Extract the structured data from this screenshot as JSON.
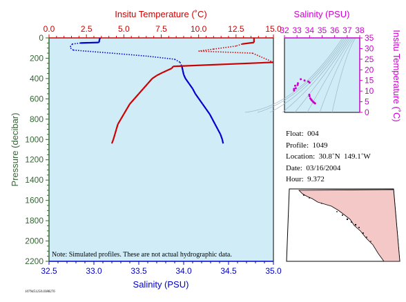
{
  "chart_data": [
    {
      "type": "line",
      "title": "",
      "top_axis": {
        "label": "Insitu Temperature (˚C)",
        "ticks": [
          "0.0",
          "2.5",
          "5.0",
          "7.5",
          "10.0",
          "12.5",
          "15.0"
        ],
        "range": [
          0.0,
          15.0
        ],
        "color": "#cc0000"
      },
      "bottom_axis": {
        "label": "Salinity (PSU)",
        "ticks": [
          "32.5",
          "33.0",
          "33.5",
          "34.0",
          "34.5",
          "35.0"
        ],
        "range": [
          32.5,
          35.0
        ],
        "color": "#0000cc"
      },
      "left_axis": {
        "label": "Pressure (decibar)",
        "ticks": [
          "0",
          "200",
          "400",
          "600",
          "800",
          "1000",
          "1200",
          "1400",
          "1600",
          "1800",
          "2000",
          "2200"
        ],
        "range": [
          0,
          2200
        ],
        "inverted": true,
        "color": "#336633"
      },
      "background": "#d0ecf7",
      "note": "Note: Simulated profiles.  These are not actual hydrographic data.",
      "series": [
        {
          "quantity": "salinity",
          "color": "#0000cc",
          "points": [
            [
              33.07,
              0
            ],
            [
              33.06,
              20
            ],
            [
              33.06,
              40
            ],
            [
              33.05,
              45
            ],
            [
              32.85,
              50
            ],
            [
              32.76,
              60
            ],
            [
              32.74,
              80
            ],
            [
              32.74,
              100
            ],
            [
              32.77,
              120
            ],
            [
              33.2,
              150
            ],
            [
              33.6,
              180
            ],
            [
              33.9,
              210
            ],
            [
              33.96,
              240
            ],
            [
              33.98,
              280
            ],
            [
              33.99,
              320
            ],
            [
              34.0,
              360
            ],
            [
              34.02,
              400
            ],
            [
              34.06,
              450
            ],
            [
              34.1,
              500
            ],
            [
              34.13,
              550
            ],
            [
              34.17,
              600
            ],
            [
              34.21,
              650
            ],
            [
              34.25,
              700
            ],
            [
              34.29,
              750
            ],
            [
              34.32,
              800
            ],
            [
              34.35,
              850
            ],
            [
              34.38,
              900
            ],
            [
              34.41,
              950
            ],
            [
              34.43,
              1000
            ],
            [
              34.44,
              1040
            ]
          ],
          "dotted_depth_range": [
            50,
            280
          ]
        },
        {
          "quantity": "temperature",
          "color": "#cc0000",
          "points": [
            [
              13.7,
              0
            ],
            [
              13.7,
              20
            ],
            [
              13.7,
              45
            ],
            [
              12.9,
              60
            ],
            [
              12.5,
              80
            ],
            [
              11.0,
              110
            ],
            [
              10.0,
              130
            ],
            [
              13.6,
              150
            ],
            [
              15.0,
              240
            ],
            [
              8.3,
              280
            ],
            [
              8.2,
              300
            ],
            [
              7.9,
              320
            ],
            [
              7.6,
              340
            ],
            [
              7.2,
              370
            ],
            [
              6.9,
              400
            ],
            [
              6.6,
              450
            ],
            [
              6.3,
              500
            ],
            [
              6.0,
              550
            ],
            [
              5.7,
              600
            ],
            [
              5.4,
              650
            ],
            [
              5.2,
              700
            ],
            [
              5.0,
              750
            ],
            [
              4.8,
              800
            ],
            [
              4.6,
              850
            ],
            [
              4.5,
              900
            ],
            [
              4.4,
              950
            ],
            [
              4.3,
              1000
            ],
            [
              4.2,
              1040
            ]
          ],
          "dotted_depth_range": [
            60,
            250
          ]
        }
      ]
    },
    {
      "type": "scatter",
      "title": "",
      "top_axis": {
        "label": "Salinity (PSU)",
        "ticks": [
          "32",
          "33",
          "34",
          "35",
          "36",
          "37",
          "38"
        ],
        "range": [
          32,
          38
        ],
        "color": "#cc00cc"
      },
      "right_axis": {
        "label": "Insitu Temperature (˚C)",
        "ticks": [
          "0",
          "5",
          "10",
          "15",
          "20",
          "25",
          "30",
          "35"
        ],
        "range": [
          0,
          35
        ],
        "color": "#cc00cc"
      },
      "background": "#d0ecf7",
      "points_color": "#cc00cc",
      "points": [
        [
          33.07,
          13.7
        ],
        [
          33.05,
          12.9
        ],
        [
          32.85,
          12.5
        ],
        [
          32.76,
          11.0
        ],
        [
          32.76,
          10.3
        ],
        [
          32.9,
          11.4
        ],
        [
          33.3,
          15.6
        ],
        [
          33.6,
          15.0
        ],
        [
          33.9,
          14.5
        ],
        [
          34.0,
          14.0
        ],
        [
          33.98,
          8.3
        ],
        [
          34.0,
          7.6
        ],
        [
          34.06,
          6.6
        ],
        [
          34.13,
          6.0
        ],
        [
          34.17,
          5.7
        ],
        [
          34.25,
          5.2
        ],
        [
          34.32,
          4.8
        ],
        [
          34.38,
          4.5
        ],
        [
          34.44,
          4.2
        ]
      ]
    }
  ],
  "info": {
    "float": "Float:  004",
    "profile": "Profile:  1049",
    "location": "Location:  30.8˚N  149.1˚W",
    "date": "Date:  03/16/2004",
    "hour": "Hour:  9.372"
  },
  "map": {
    "ocean_color": "#ffffff",
    "land_color": "#f5c8c8"
  },
  "footer_id": "1079451250.0388276"
}
